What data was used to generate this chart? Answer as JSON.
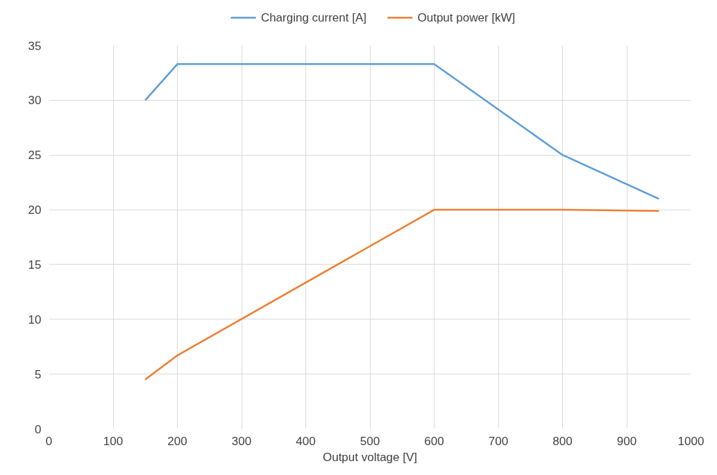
{
  "chart_data": {
    "type": "line",
    "xlabel": "Output voltage [V]",
    "x": [
      150,
      200,
      600,
      800,
      950
    ],
    "series": [
      {
        "name": "Charging current [A]",
        "color": "#5b9bd5",
        "values": [
          30,
          33.3,
          33.3,
          25,
          21
        ]
      },
      {
        "name": "Output power [kW]",
        "color": "#ed7d31",
        "values": [
          4.5,
          6.7,
          20,
          20,
          19.9
        ]
      }
    ],
    "xlim": [
      0,
      1000
    ],
    "xticks": [
      0,
      100,
      200,
      300,
      400,
      500,
      600,
      700,
      800,
      900,
      1000
    ],
    "ylim": [
      0,
      35
    ],
    "yticks": [
      0,
      5,
      10,
      15,
      20,
      25,
      30,
      35
    ],
    "grid": true,
    "legend": "top",
    "marker": "none",
    "line_style": "solid"
  }
}
